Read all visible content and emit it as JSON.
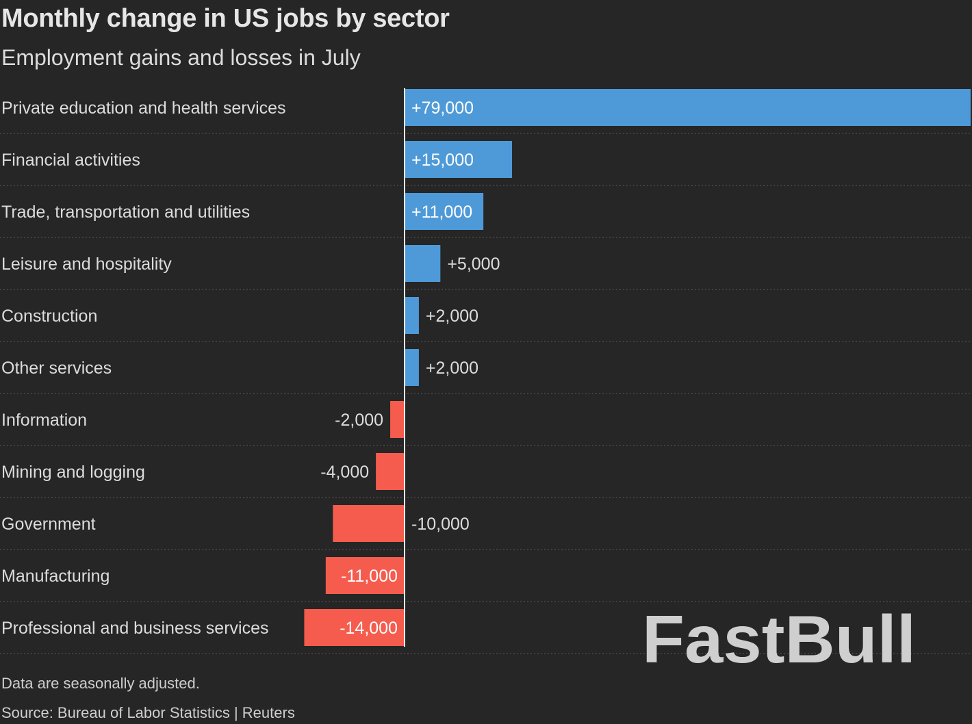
{
  "title": "Monthly change in US jobs by sector",
  "subtitle": "Employment gains and losses in July",
  "note": "Data are seasonally adjusted.",
  "source": "Source: Bureau of Labor Statistics | Reuters",
  "watermark": "FastBull",
  "colors": {
    "background": "#262626",
    "positive": "#4e9ad8",
    "negative": "#f55c4d",
    "text": "#dcdcdc",
    "gridline": "#5a5a5a",
    "zero_line": "#ffffff",
    "watermark": "#cfcfcf"
  },
  "chart_data": {
    "type": "bar",
    "orientation": "horizontal",
    "title": "Monthly change in US jobs by sector",
    "subtitle": "Employment gains and losses in July",
    "categories": [
      "Private education and health services",
      "Financial activities",
      "Trade, transportation and utilities",
      "Leisure and hospitality",
      "Construction",
      "Other services",
      "Information",
      "Mining and logging",
      "Government",
      "Manufacturing",
      "Professional and business services"
    ],
    "values": [
      79000,
      15000,
      11000,
      5000,
      2000,
      2000,
      -2000,
      -4000,
      -10000,
      -11000,
      -14000
    ],
    "value_labels": [
      "+79,000",
      "+15,000",
      "+11,000",
      "+5,000",
      "+2,000",
      "+2,000",
      "-2,000",
      "-4,000",
      "-10,000",
      "-11,000",
      "-14,000"
    ],
    "xlim": [
      -14000,
      79000
    ],
    "grid": "dotted row separators",
    "legend": "none"
  }
}
